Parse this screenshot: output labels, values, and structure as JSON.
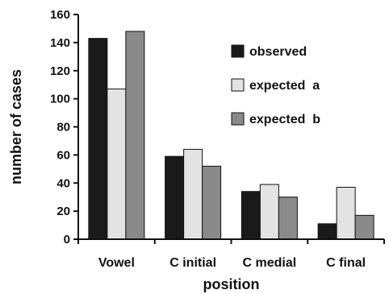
{
  "chart_data": {
    "type": "bar",
    "title": "",
    "xlabel": "position",
    "ylabel": "number of cases",
    "categories": [
      "Vowel",
      "C initial",
      "C medial",
      "C final"
    ],
    "ylim": [
      0,
      160
    ],
    "yticks": [
      "0",
      "20",
      "40",
      "60",
      "80",
      "100",
      "120",
      "140",
      "160"
    ],
    "grid": false,
    "legend_position": "top-right",
    "series": [
      {
        "name": "observed",
        "values": [
          143,
          59,
          34,
          11
        ],
        "color": "#1a1a1a"
      },
      {
        "name": "expected  a",
        "values": [
          107,
          64,
          39,
          37
        ],
        "color": "#e3e3e3"
      },
      {
        "name": "expected  b",
        "values": [
          148,
          52,
          30,
          17
        ],
        "color": "#8a8a8a"
      }
    ]
  }
}
